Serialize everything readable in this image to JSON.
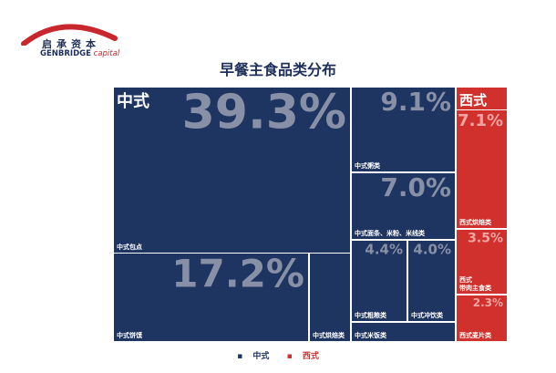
{
  "logo": {
    "cn": "启承资本",
    "en_bold": "GENBRIDGE",
    "en_italic": "capital"
  },
  "colors": {
    "navy": "#1e3461",
    "red": "#d0312d",
    "value_text": "#8790a6",
    "value_text_red": "#f0a5a3",
    "title": "#1d2f5a"
  },
  "chart_data": {
    "type": "treemap",
    "title": "早餐主食品类分布",
    "unit": "%",
    "legend": [
      "中式",
      "西式"
    ],
    "groups": [
      {
        "name": "中式",
        "items": [
          {
            "name": "中式包点",
            "value": 39.3
          },
          {
            "name": "中式饼馍",
            "value": 17.2
          },
          {
            "name": "中式粥类",
            "value": 9.1
          },
          {
            "name": "中式面条、米粉、米线类",
            "value": 7.0
          },
          {
            "name": "中式粗粮类",
            "value": 4.4
          },
          {
            "name": "中式冲饮类",
            "value": 4.0
          },
          {
            "name": "中式烘焙类",
            "value": null
          },
          {
            "name": "中式米饭类",
            "value": null
          }
        ]
      },
      {
        "name": "西式",
        "items": [
          {
            "name": "西式烘焙类",
            "value": 7.1
          },
          {
            "name": "西式\n带肉主食类",
            "value": 3.5
          },
          {
            "name": "西式麦片类",
            "value": 2.3
          }
        ]
      }
    ]
  }
}
